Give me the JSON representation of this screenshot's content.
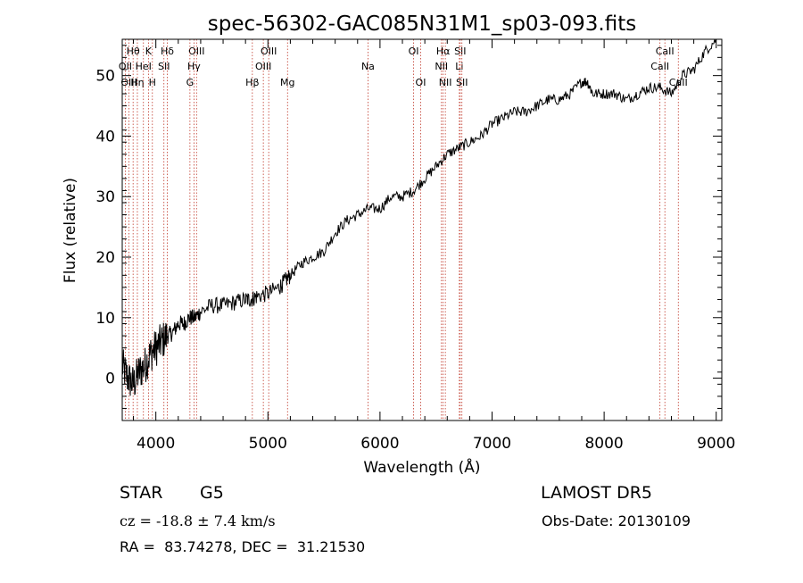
{
  "chart_data": {
    "type": "line",
    "title": "spec-56302-GAC085N31M1_sp03-093.fits",
    "xlabel": "Wavelength (Å)",
    "ylabel": "Flux (relative)",
    "xlim": [
      3700,
      9050
    ],
    "ylim": [
      -7,
      56
    ],
    "xticks": [
      4000,
      5000,
      6000,
      7000,
      8000,
      9000
    ],
    "yticks": [
      0,
      10,
      20,
      30,
      40,
      50
    ],
    "grid": false,
    "series": [
      {
        "x": [
          3700,
          3750,
          3800,
          3850,
          3900,
          3950,
          4000,
          4050,
          4100,
          4150,
          4200,
          4250,
          4300,
          4350,
          4400,
          4500,
          4600,
          4700,
          4800,
          4850,
          4900,
          5000,
          5100,
          5150,
          5200,
          5300,
          5400,
          5500,
          5600,
          5700,
          5800,
          5900,
          6000,
          6100,
          6200,
          6300,
          6400,
          6500,
          6600,
          6700,
          6800,
          6900,
          7000,
          7100,
          7200,
          7300,
          7400,
          7500,
          7600,
          7700,
          7800,
          7850,
          7900,
          8000,
          8100,
          8200,
          8300,
          8400,
          8500,
          8600,
          8700,
          8800,
          8900,
          9000
        ],
        "y": [
          2,
          0,
          -1,
          1,
          2,
          4,
          5,
          6,
          7,
          7.5,
          9,
          9,
          10,
          10,
          11,
          12,
          12,
          12.5,
          13,
          13,
          13.5,
          14,
          15,
          16,
          17,
          19,
          20,
          21,
          24,
          26,
          27,
          28,
          28,
          30,
          30,
          31,
          33,
          35,
          37,
          38,
          39,
          40,
          42,
          43,
          44,
          44,
          45,
          46,
          46,
          47,
          49,
          49,
          47,
          47,
          47,
          46,
          47,
          48,
          48,
          47,
          50,
          51,
          54,
          56
        ]
      }
    ],
    "line_labels": [
      {
        "name": "Hθ",
        "wavelength": 3797,
        "row": 1
      },
      {
        "name": "OII",
        "wavelength": 3727,
        "row": 2
      },
      {
        "name": "OIII",
        "wavelength": 3760,
        "row": 3
      },
      {
        "name": "K",
        "wavelength": 3934,
        "row": 1
      },
      {
        "name": "H",
        "wavelength": 3969,
        "row": 3
      },
      {
        "name": "Hη",
        "wavelength": 3835,
        "row": 3
      },
      {
        "name": "HeI",
        "wavelength": 3889,
        "row": 2
      },
      {
        "name": "Hδ",
        "wavelength": 4102,
        "row": 1
      },
      {
        "name": "SII",
        "wavelength": 4072,
        "row": 2
      },
      {
        "name": "OIII",
        "wavelength": 4363,
        "row": 1
      },
      {
        "name": "Hγ",
        "wavelength": 4340,
        "row": 2
      },
      {
        "name": "G",
        "wavelength": 4304,
        "row": 3
      },
      {
        "name": "OIII",
        "wavelength": 5007,
        "row": 1
      },
      {
        "name": "OIII",
        "wavelength": 4959,
        "row": 2
      },
      {
        "name": "Hβ",
        "wavelength": 4861,
        "row": 3
      },
      {
        "name": "Mg",
        "wavelength": 5175,
        "row": 3
      },
      {
        "name": "Na",
        "wavelength": 5893,
        "row": 2
      },
      {
        "name": "OI",
        "wavelength": 6300,
        "row": 1
      },
      {
        "name": "OI",
        "wavelength": 6363,
        "row": 3
      },
      {
        "name": "Hα",
        "wavelength": 6563,
        "row": 1
      },
      {
        "name": "NII",
        "wavelength": 6548,
        "row": 2
      },
      {
        "name": "NII",
        "wavelength": 6583,
        "row": 3
      },
      {
        "name": "SII",
        "wavelength": 6716,
        "row": 1
      },
      {
        "name": "Li",
        "wavelength": 6708,
        "row": 2
      },
      {
        "name": "SII",
        "wavelength": 6731,
        "row": 3
      },
      {
        "name": "CaII",
        "wavelength": 8542,
        "row": 1
      },
      {
        "name": "CaII",
        "wavelength": 8498,
        "row": 2
      },
      {
        "name": "CaII",
        "wavelength": 8662,
        "row": 3
      }
    ]
  },
  "info": {
    "object_class": "STAR",
    "subclass": "G5",
    "survey": "LAMOST DR5",
    "redshift": "cz = -18.8 ± 7.4 km/s",
    "obs_date": "Obs-Date: 20130109",
    "coords": "RA =  83.74278, DEC =  31.21530"
  }
}
